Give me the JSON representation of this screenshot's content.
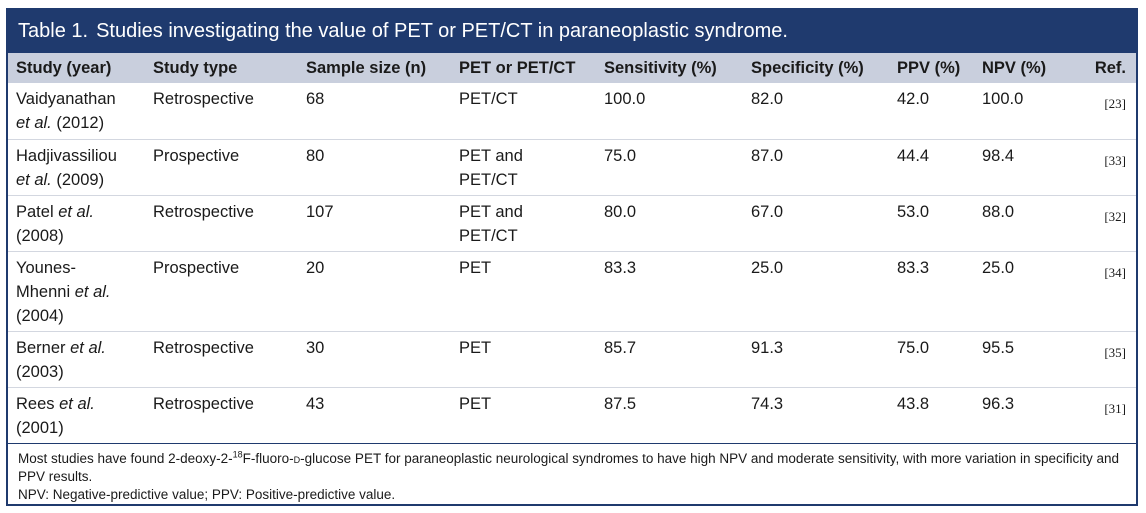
{
  "table": {
    "title_label": "Table 1.",
    "title_text": "Studies investigating the value of PET or PET/CT in paraneoplastic syndrome.",
    "headers": [
      "Study (year)",
      "Study type",
      "Sample size (n)",
      "PET or PET/CT",
      "Sensitivity (%)",
      "Specificity (%)",
      "PPV (%)",
      "NPV (%)",
      "Ref."
    ],
    "rows": [
      {
        "author": "Vaidyanathan",
        "etal": "et al.",
        "year": "(2012)",
        "type": "Retrospective",
        "n": "68",
        "modality": "PET/CT",
        "modality2": "",
        "sens": "100.0",
        "spec": "82.0",
        "ppv": "42.0",
        "npv": "100.0",
        "ref": "[23]"
      },
      {
        "author": "Hadjivassiliou",
        "etal": "et al.",
        "year": "(2009)",
        "type": "Prospective",
        "n": "80",
        "modality": "PET and",
        "modality2": "PET/CT",
        "sens": "75.0",
        "spec": "87.0",
        "ppv": "44.4",
        "npv": "98.4",
        "ref": "[33]"
      },
      {
        "author": "Patel",
        "etal": "et al.",
        "year": "(2008)",
        "type": "Retrospective",
        "n": "107",
        "modality": "PET and",
        "modality2": "PET/CT",
        "sens": "80.0",
        "spec": "67.0",
        "ppv": "53.0",
        "npv": "88.0",
        "ref": "[32]"
      },
      {
        "author": "Younes-",
        "author2": "Mhenni",
        "etal": "et al.",
        "year": "(2004)",
        "type": "Prospective",
        "n": "20",
        "modality": "PET",
        "modality2": "",
        "sens": "83.3",
        "spec": "25.0",
        "ppv": "83.3",
        "npv": "25.0",
        "ref": "[34]"
      },
      {
        "author": "Berner",
        "etal": "et al.",
        "year": "(2003)",
        "type": "Retrospective",
        "n": "30",
        "modality": "PET",
        "modality2": "",
        "sens": "85.7",
        "spec": "91.3",
        "ppv": "75.0",
        "npv": "95.5",
        "ref": "[35]"
      },
      {
        "author": "Rees",
        "etal": "et al.",
        "year": "(2001)",
        "type": "Retrospective",
        "n": "43",
        "modality": "PET",
        "modality2": "",
        "sens": "87.5",
        "spec": "74.3",
        "ppv": "43.8",
        "npv": "96.3",
        "ref": "[31]"
      }
    ],
    "note": {
      "part1": "Most studies have found 2-deoxy-2-",
      "sup": "18",
      "part2": "F-fluoro-",
      "smallcaps": "d",
      "part3": "-glucose PET for paraneoplastic neurological syndromes to have high NPV and moderate sensitivity, with more variation in specificity and PPV results.",
      "abbrev": "NPV: Negative-predictive value; PPV: Positive-predictive value."
    }
  }
}
